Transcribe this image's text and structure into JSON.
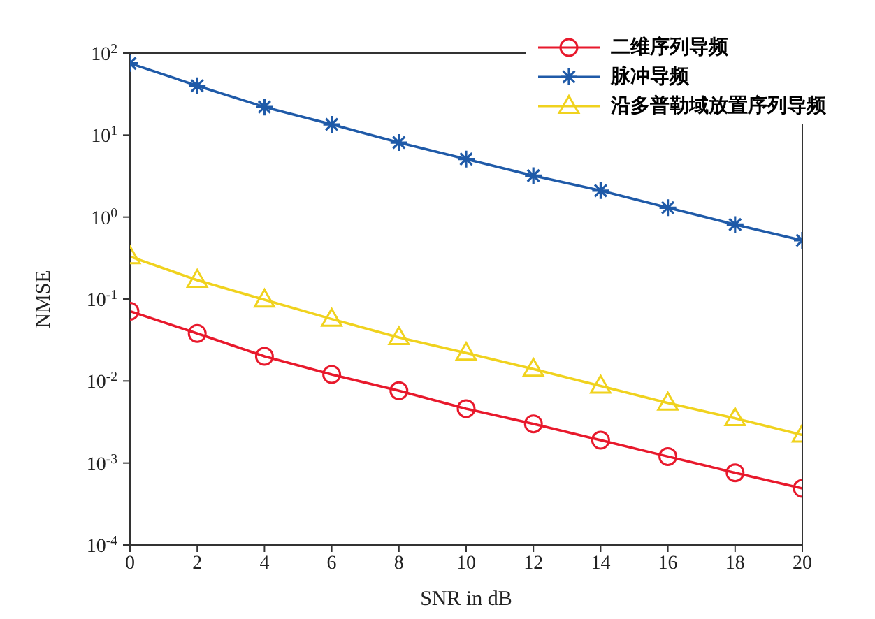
{
  "chart_data": {
    "type": "line",
    "xlabel": "SNR in dB",
    "ylabel": "NMSE",
    "log": "y",
    "legend": "top right",
    "line_style": "solid",
    "x": [
      0,
      2,
      4,
      6,
      8,
      10,
      12,
      14,
      16,
      18,
      20
    ],
    "xlim": [
      0,
      20
    ],
    "xticks": [
      0,
      2,
      4,
      6,
      8,
      10,
      12,
      14,
      16,
      18,
      20
    ],
    "ylim": [
      0.0001,
      100
    ],
    "yticks": [
      {
        "value": 0.0001,
        "label": "10$^{-4}$"
      },
      {
        "value": 0.001,
        "label": "10$^{-3}$"
      },
      {
        "value": 0.01,
        "label": "10$^{-2}$"
      },
      {
        "value": 0.1,
        "label": "10$^{-1}$"
      },
      {
        "value": 1,
        "label": "10$^{0}$"
      },
      {
        "value": 10,
        "label": "10$^{1}$"
      },
      {
        "value": 100,
        "label": "10$^{2}$"
      }
    ],
    "series": [
      {
        "name": "二维序列导频",
        "color": "#e8192c",
        "marker": "circle",
        "values": [
          0.071,
          0.038,
          0.02,
          0.012,
          0.0076,
          0.0046,
          0.003,
          0.0019,
          0.0012,
          0.00076,
          0.00049
        ]
      },
      {
        "name": "脉冲导频",
        "color": "#1f5aa8",
        "marker": "cross",
        "values": [
          75,
          40,
          22,
          13.5,
          8.1,
          5.1,
          3.2,
          2.1,
          1.3,
          0.81,
          0.52
        ]
      },
      {
        "name": "沿多普勒域放置序列导频",
        "color": "#f0d21e",
        "marker": "triangle",
        "values": [
          0.33,
          0.17,
          0.098,
          0.057,
          0.034,
          0.022,
          0.014,
          0.0087,
          0.0054,
          0.0035,
          0.0022
        ]
      }
    ]
  }
}
